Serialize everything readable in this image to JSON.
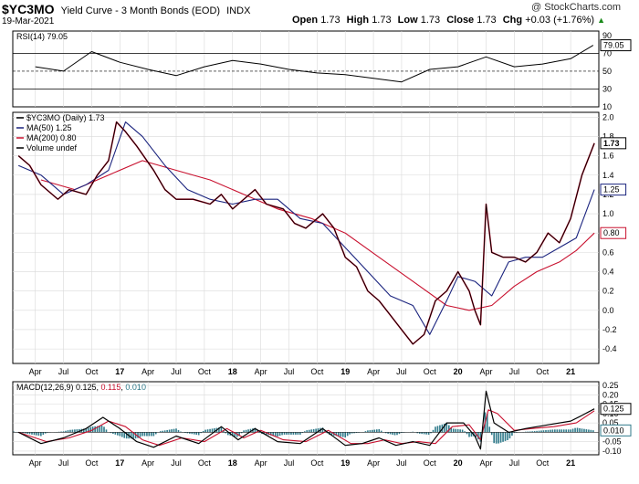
{
  "header": {
    "symbol": "$YC3MO",
    "title": "Yield Curve - 3 Month Bonds (EOD)",
    "exchange": "INDX",
    "date": "19-Mar-2021",
    "watermark": "@ StockCharts.com",
    "open_label": "Open",
    "open": "1.73",
    "high_label": "High",
    "high": "1.73",
    "low_label": "Low",
    "low": "1.73",
    "close_label": "Close",
    "close": "1.73",
    "chg_label": "Chg",
    "chg": "+0.03 (+1.76%)",
    "chg_arrow": "▲"
  },
  "colors": {
    "price": "#000000",
    "price_down": "#c8102e",
    "ma50": "#1a237e",
    "ma200": "#c8102e",
    "macd": "#000000",
    "signal": "#c8102e",
    "histogram": "#2f7a8a",
    "grid": "#d9d9d9"
  },
  "chart_data": [
    {
      "type": "line",
      "panel": "RSI",
      "title": "RSI(14) 79.05",
      "yticks": [
        10,
        30,
        50,
        70,
        90
      ],
      "ylim": [
        10,
        95
      ],
      "reference_lines": [
        30,
        50,
        70
      ],
      "last_value_label": "79.05",
      "series": [
        {
          "name": "RSI(14)",
          "x": [
            2016.25,
            2016.5,
            2016.75,
            2017.0,
            2017.25,
            2017.5,
            2017.75,
            2018.0,
            2018.25,
            2018.5,
            2018.75,
            2019.0,
            2019.25,
            2019.5,
            2019.75,
            2020.0,
            2020.25,
            2020.5,
            2020.75,
            2021.0,
            2021.2
          ],
          "values": [
            55,
            50,
            72,
            60,
            52,
            45,
            55,
            62,
            58,
            52,
            48,
            46,
            42,
            38,
            52,
            55,
            66,
            55,
            58,
            64,
            79
          ]
        }
      ]
    },
    {
      "type": "line",
      "panel": "price",
      "legend": [
        "$YC3MO (Daily) 1.73",
        "MA(50) 1.25",
        "MA(200) 0.80",
        "Volume undef"
      ],
      "yticks": [
        -0.4,
        -0.2,
        0.0,
        0.2,
        0.4,
        0.6,
        0.8,
        1.0,
        1.2,
        1.4,
        1.6,
        1.8,
        2.0
      ],
      "ylim": [
        -0.55,
        2.05
      ],
      "x_tick_labels": [
        "Apr",
        "Jul",
        "Oct",
        "17",
        "Apr",
        "Jul",
        "Oct",
        "18",
        "Apr",
        "Jul",
        "Oct",
        "19",
        "Apr",
        "Jul",
        "Oct",
        "20",
        "Apr",
        "Jul",
        "Oct",
        "21"
      ],
      "value_tags": [
        "1.73",
        "1.25",
        "0.80"
      ],
      "series": [
        {
          "name": "$YC3MO (Daily)",
          "x": [
            2016.1,
            2016.2,
            2016.3,
            2016.45,
            2016.55,
            2016.7,
            2016.8,
            2016.9,
            2016.97,
            2017.05,
            2017.15,
            2017.3,
            2017.4,
            2017.5,
            2017.65,
            2017.8,
            2017.9,
            2018.0,
            2018.1,
            2018.2,
            2018.3,
            2018.45,
            2018.55,
            2018.65,
            2018.8,
            2018.9,
            2019.0,
            2019.1,
            2019.2,
            2019.3,
            2019.4,
            2019.5,
            2019.6,
            2019.7,
            2019.8,
            2019.9,
            2020.0,
            2020.1,
            2020.15,
            2020.2,
            2020.25,
            2020.3,
            2020.4,
            2020.5,
            2020.6,
            2020.7,
            2020.8,
            2020.9,
            2021.0,
            2021.1,
            2021.21
          ],
          "values": [
            1.6,
            1.5,
            1.3,
            1.15,
            1.25,
            1.2,
            1.4,
            1.55,
            1.95,
            1.85,
            1.7,
            1.45,
            1.25,
            1.15,
            1.15,
            1.1,
            1.2,
            1.05,
            1.15,
            1.25,
            1.1,
            1.05,
            0.9,
            0.85,
            1.0,
            0.85,
            0.55,
            0.45,
            0.2,
            0.1,
            -0.05,
            -0.2,
            -0.35,
            -0.25,
            0.1,
            0.2,
            0.4,
            0.2,
            0.0,
            -0.15,
            1.1,
            0.6,
            0.55,
            0.55,
            0.5,
            0.6,
            0.8,
            0.7,
            0.95,
            1.4,
            1.73
          ]
        },
        {
          "name": "MA(50)",
          "x": [
            2016.1,
            2016.3,
            2016.5,
            2016.7,
            2016.9,
            2017.05,
            2017.2,
            2017.4,
            2017.6,
            2017.8,
            2018.0,
            2018.2,
            2018.4,
            2018.6,
            2018.8,
            2019.0,
            2019.2,
            2019.4,
            2019.6,
            2019.75,
            2019.9,
            2020.0,
            2020.15,
            2020.3,
            2020.45,
            2020.6,
            2020.75,
            2020.9,
            2021.05,
            2021.21
          ],
          "values": [
            1.5,
            1.4,
            1.2,
            1.3,
            1.45,
            1.95,
            1.8,
            1.5,
            1.25,
            1.15,
            1.1,
            1.15,
            1.15,
            0.95,
            0.9,
            0.65,
            0.4,
            0.15,
            0.05,
            -0.25,
            0.1,
            0.35,
            0.3,
            0.15,
            0.5,
            0.55,
            0.55,
            0.65,
            0.75,
            1.25
          ]
        },
        {
          "name": "MA(200)",
          "x": [
            2016.3,
            2016.6,
            2016.9,
            2017.2,
            2017.5,
            2017.8,
            2018.1,
            2018.4,
            2018.7,
            2019.0,
            2019.3,
            2019.6,
            2019.9,
            2020.1,
            2020.3,
            2020.5,
            2020.7,
            2020.9,
            2021.05,
            2021.21
          ],
          "values": [
            1.35,
            1.25,
            1.4,
            1.55,
            1.45,
            1.35,
            1.2,
            1.05,
            0.95,
            0.8,
            0.55,
            0.3,
            0.05,
            0.0,
            0.05,
            0.25,
            0.4,
            0.5,
            0.62,
            0.8
          ]
        }
      ]
    },
    {
      "type": "line",
      "panel": "MACD",
      "title": "MACD(12,26,9) 0.125, 0.115, 0.010",
      "title_parts": [
        "MACD(12,26,9) 0.125, ",
        "0.115",
        ", ",
        "0.010"
      ],
      "yticks": [
        -0.1,
        -0.05,
        0.0,
        0.05,
        0.1,
        0.15,
        0.2,
        0.25
      ],
      "ylim": [
        -0.12,
        0.27
      ],
      "value_tags": [
        "0.125",
        "0.010"
      ],
      "x_tick_labels": [
        "Apr",
        "Jul",
        "Oct",
        "17",
        "Apr",
        "Jul",
        "Oct",
        "18",
        "Apr",
        "Jul",
        "Oct",
        "19",
        "Apr",
        "Jul",
        "Oct",
        "20",
        "Apr",
        "Jul",
        "Oct",
        "21"
      ],
      "series": [
        {
          "name": "MACD",
          "x": [
            2016.1,
            2016.3,
            2016.5,
            2016.7,
            2016.85,
            2017.0,
            2017.15,
            2017.3,
            2017.5,
            2017.7,
            2017.9,
            2018.05,
            2018.2,
            2018.4,
            2018.6,
            2018.8,
            2019.0,
            2019.15,
            2019.3,
            2019.45,
            2019.6,
            2019.75,
            2019.9,
            2020.05,
            2020.15,
            2020.2,
            2020.25,
            2020.32,
            2020.45,
            2020.6,
            2020.8,
            2021.0,
            2021.1,
            2021.21
          ],
          "values": [
            0.0,
            -0.06,
            -0.03,
            0.02,
            0.08,
            0.02,
            -0.05,
            -0.08,
            -0.02,
            -0.06,
            0.03,
            -0.04,
            0.02,
            -0.05,
            -0.06,
            0.02,
            -0.07,
            -0.06,
            -0.03,
            -0.07,
            -0.05,
            -0.07,
            0.05,
            0.05,
            -0.02,
            -0.09,
            0.22,
            0.05,
            0.0,
            0.02,
            0.04,
            0.06,
            0.09,
            0.125
          ]
        },
        {
          "name": "Signal",
          "x": [
            2016.1,
            2016.35,
            2016.55,
            2016.75,
            2016.9,
            2017.05,
            2017.2,
            2017.35,
            2017.55,
            2017.75,
            2017.95,
            2018.1,
            2018.25,
            2018.45,
            2018.65,
            2018.85,
            2019.05,
            2019.2,
            2019.35,
            2019.5,
            2019.65,
            2019.8,
            2019.95,
            2020.1,
            2020.2,
            2020.27,
            2020.35,
            2020.5,
            2020.65,
            2020.85,
            2021.05,
            2021.21
          ],
          "values": [
            0.0,
            -0.05,
            -0.03,
            0.01,
            0.06,
            0.03,
            -0.04,
            -0.07,
            -0.03,
            -0.05,
            0.02,
            -0.03,
            0.01,
            -0.04,
            -0.05,
            0.01,
            -0.06,
            -0.06,
            -0.04,
            -0.06,
            -0.05,
            -0.06,
            0.03,
            0.04,
            -0.04,
            0.12,
            0.1,
            0.01,
            0.02,
            0.03,
            0.05,
            0.115
          ]
        }
      ]
    }
  ]
}
